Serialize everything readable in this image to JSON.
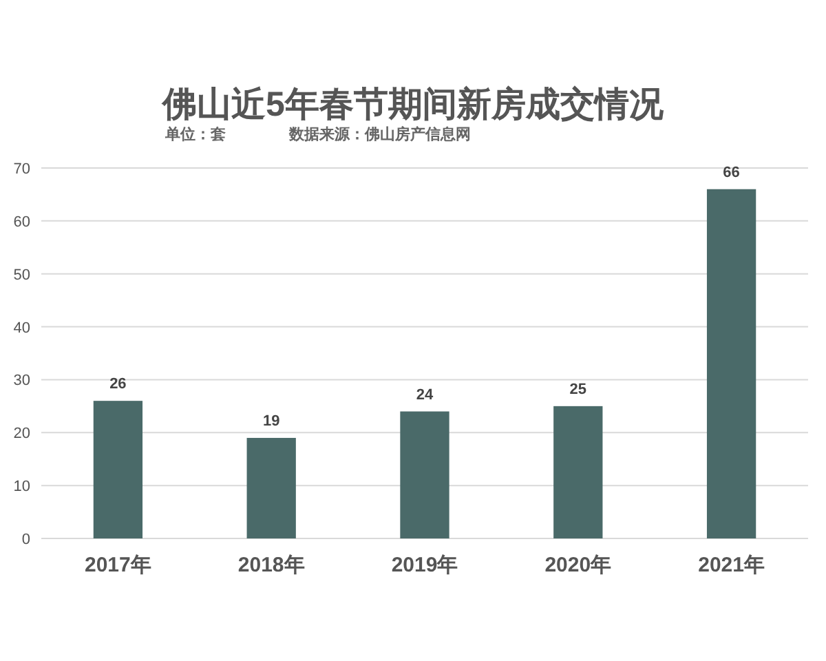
{
  "chart_data": {
    "type": "bar",
    "title": "佛山近5年春节期间新房成交情况",
    "subtitle": "单位：套",
    "annotations": [
      "数据来源：佛山房产信息网"
    ],
    "categories": [
      "2017年",
      "2018年",
      "2019年",
      "2020年",
      "2021年"
    ],
    "values": [
      26,
      19,
      24,
      25,
      66
    ],
    "color": "#4a6a69",
    "ylim": [
      0,
      70
    ],
    "yticks": [
      0,
      10,
      20,
      30,
      40,
      50,
      60,
      70
    ],
    "grid": "y",
    "data_labels": true
  }
}
